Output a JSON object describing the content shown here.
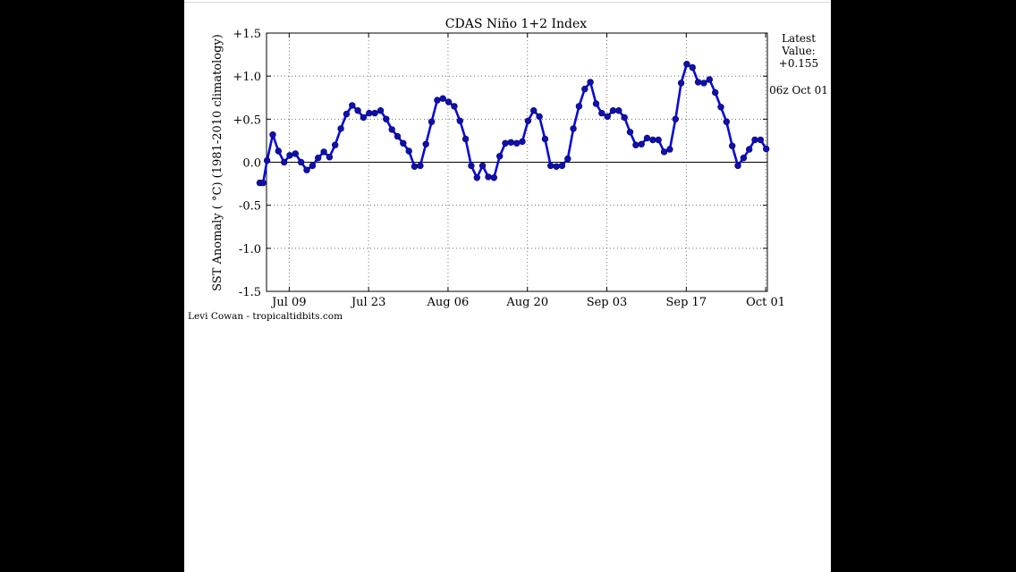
{
  "chart_data": {
    "type": "line",
    "title": "CDAS Niño 1+2 Index",
    "ylabel": "SST Anomaly ( °C) (1981-2010 climatology)",
    "xlabel": "",
    "ylim": [
      -1.5,
      1.5
    ],
    "xlim": [
      -4,
      84.3
    ],
    "grid": true,
    "y_ticks": [
      {
        "value": 1.5,
        "label": "+1.5"
      },
      {
        "value": 1.0,
        "label": "+1.0"
      },
      {
        "value": 0.5,
        "label": "+0.5"
      },
      {
        "value": 0.0,
        "label": "0.0"
      },
      {
        "value": -0.5,
        "label": "-0.5"
      },
      {
        "value": -1.0,
        "label": "-1.0"
      },
      {
        "value": -1.5,
        "label": "-1.5"
      }
    ],
    "x_ticks": [
      {
        "value": 0,
        "label": "Jul 09"
      },
      {
        "value": 14,
        "label": "Jul 23"
      },
      {
        "value": 28,
        "label": "Aug 06"
      },
      {
        "value": 42,
        "label": "Aug 20"
      },
      {
        "value": 56,
        "label": "Sep 03"
      },
      {
        "value": 70,
        "label": "Sep 17"
      },
      {
        "value": 84,
        "label": "Oct 01"
      }
    ],
    "series": [
      {
        "color": "#0a0ad6",
        "points": [
          [
            -5.2,
            -0.24
          ],
          [
            -4.6,
            -0.24
          ],
          [
            -3.9,
            0.02
          ],
          [
            -2.9,
            0.32
          ],
          [
            -1.9,
            0.13
          ],
          [
            -0.9,
            0.0
          ],
          [
            0.1,
            0.08
          ],
          [
            1.1,
            0.1
          ],
          [
            2.1,
            0.0
          ],
          [
            3.1,
            -0.09
          ],
          [
            4.1,
            -0.04
          ],
          [
            5.1,
            0.05
          ],
          [
            6.1,
            0.12
          ],
          [
            7.1,
            0.06
          ],
          [
            8.1,
            0.2
          ],
          [
            9.1,
            0.39
          ],
          [
            10.1,
            0.56
          ],
          [
            11.1,
            0.66
          ],
          [
            12.1,
            0.6
          ],
          [
            13.1,
            0.52
          ],
          [
            14.1,
            0.57
          ],
          [
            15.1,
            0.57
          ],
          [
            16.1,
            0.6
          ],
          [
            17.1,
            0.5
          ],
          [
            18.1,
            0.38
          ],
          [
            19.1,
            0.3
          ],
          [
            20.1,
            0.22
          ],
          [
            21.1,
            0.13
          ],
          [
            22.1,
            -0.05
          ],
          [
            23.1,
            -0.04
          ],
          [
            24.1,
            0.21
          ],
          [
            25.1,
            0.47
          ],
          [
            26.1,
            0.72
          ],
          [
            27.1,
            0.74
          ],
          [
            28.1,
            0.7
          ],
          [
            29.1,
            0.65
          ],
          [
            30.1,
            0.48
          ],
          [
            31.1,
            0.27
          ],
          [
            32.1,
            -0.04
          ],
          [
            33.1,
            -0.18
          ],
          [
            34.1,
            -0.04
          ],
          [
            35.1,
            -0.17
          ],
          [
            36.1,
            -0.18
          ],
          [
            37.1,
            0.07
          ],
          [
            38.1,
            0.22
          ],
          [
            39.1,
            0.23
          ],
          [
            40.1,
            0.22
          ],
          [
            41.1,
            0.24
          ],
          [
            42.1,
            0.48
          ],
          [
            43.1,
            0.6
          ],
          [
            44.1,
            0.53
          ],
          [
            45.1,
            0.27
          ],
          [
            46.1,
            -0.04
          ],
          [
            47.1,
            -0.05
          ],
          [
            48.1,
            -0.04
          ],
          [
            49.1,
            0.04
          ],
          [
            50.1,
            0.39
          ],
          [
            51.1,
            0.65
          ],
          [
            52.1,
            0.85
          ],
          [
            53.1,
            0.93
          ],
          [
            54.1,
            0.68
          ],
          [
            55.1,
            0.57
          ],
          [
            56.1,
            0.53
          ],
          [
            57.1,
            0.6
          ],
          [
            58.1,
            0.6
          ],
          [
            59.1,
            0.52
          ],
          [
            60.1,
            0.35
          ],
          [
            61.1,
            0.2
          ],
          [
            62.1,
            0.21
          ],
          [
            63.1,
            0.28
          ],
          [
            64.1,
            0.26
          ],
          [
            65.1,
            0.26
          ],
          [
            66.1,
            0.12
          ],
          [
            67.1,
            0.15
          ],
          [
            68.1,
            0.5
          ],
          [
            69.1,
            0.92
          ],
          [
            70.1,
            1.14
          ],
          [
            71.1,
            1.1
          ],
          [
            72.1,
            0.93
          ],
          [
            73.1,
            0.92
          ],
          [
            74.1,
            0.96
          ],
          [
            75.1,
            0.81
          ],
          [
            76.1,
            0.64
          ],
          [
            77.1,
            0.47
          ],
          [
            78.1,
            0.19
          ],
          [
            79.1,
            -0.04
          ],
          [
            80.1,
            0.05
          ],
          [
            81.1,
            0.15
          ],
          [
            82.1,
            0.26
          ],
          [
            83.1,
            0.26
          ],
          [
            84.1,
            0.155
          ]
        ]
      }
    ],
    "annotations": {
      "latest_line1": "Latest",
      "latest_line2": "Value:",
      "latest_value": "+0.155",
      "timestamp": "06z Oct 01"
    },
    "credit": "Levi Cowan - tropicaltidbits.com"
  }
}
